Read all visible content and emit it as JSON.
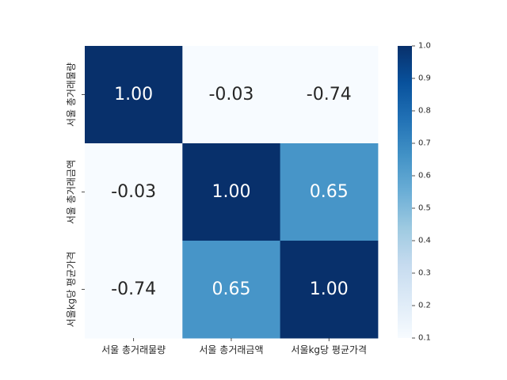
{
  "chart_data": {
    "type": "heatmap",
    "title": "",
    "xlabel": "",
    "ylabel": "",
    "rows": [
      "서울 총거래물량",
      "서울 총거래금액",
      "서울kg당 평균가격"
    ],
    "columns": [
      "서울 총거래물량",
      "서울 총거래금액",
      "서울kg당 평균가격"
    ],
    "values": [
      [
        1.0,
        -0.03,
        -0.74
      ],
      [
        -0.03,
        1.0,
        0.65
      ],
      [
        -0.74,
        0.65,
        1.0
      ]
    ],
    "annotations": [
      [
        "1.00",
        "-0.03",
        "-0.74"
      ],
      [
        "-0.03",
        "1.00",
        "0.65"
      ],
      [
        "-0.74",
        "0.65",
        "1.00"
      ]
    ],
    "colormap": "Blues",
    "vmin": 0.1,
    "vmax": 1.0,
    "colorbar": {
      "ticks": [
        0.1,
        0.2,
        0.3,
        0.4,
        0.5,
        0.6,
        0.7,
        0.8,
        0.9,
        1.0
      ],
      "tick_labels": [
        "0.1",
        "0.2",
        "0.3",
        "0.4",
        "0.5",
        "0.6",
        "0.7",
        "0.8",
        "0.9",
        "1.0"
      ]
    },
    "colors": {
      "dark_blue": "#08306b",
      "mid_blue": "#4a98c9",
      "light_blue": "#f7fbff",
      "text_light": "#ffffff",
      "text_dark": "#262626"
    }
  }
}
